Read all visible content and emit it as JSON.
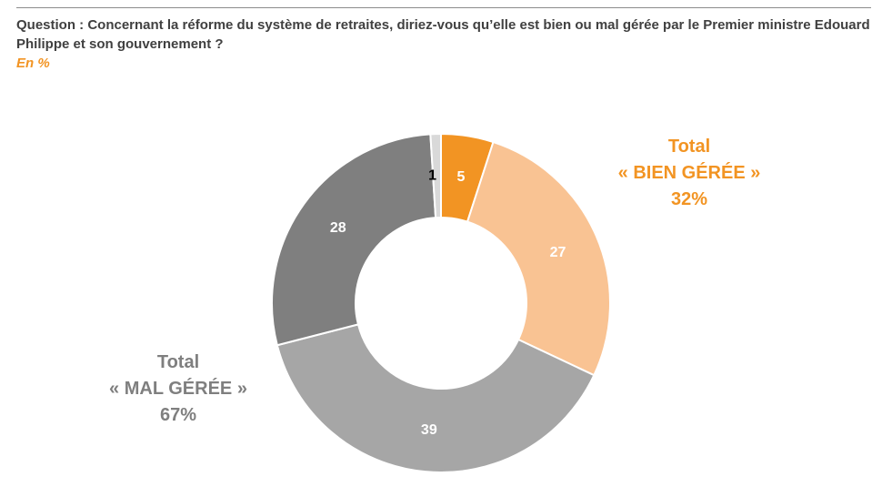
{
  "header": {
    "question": "Question : Concernant la réforme du système de retraites, diriez-vous qu’elle est bien ou mal gérée par le Premier ministre Edouard Philippe et son gouvernement ?",
    "unit": "En %"
  },
  "chart_data": {
    "type": "pie",
    "variant": "donut",
    "start": "top",
    "direction": "clockwise",
    "slices": [
      {
        "label": "",
        "value": 5,
        "color": "#f29423",
        "label_color": "#ffffff"
      },
      {
        "label": "",
        "value": 27,
        "color": "#f9c393",
        "label_color": "#ffffff"
      },
      {
        "label": "",
        "value": 39,
        "color": "#a6a6a6",
        "label_color": "#ffffff"
      },
      {
        "label": "",
        "value": 28,
        "color": "#7f7f7f",
        "label_color": "#ffffff"
      },
      {
        "label": "",
        "value": 1,
        "color": "#d9d9d9",
        "label_color": "#000000"
      }
    ],
    "data_labels": [
      "5",
      "27",
      "39",
      "28",
      "1"
    ]
  },
  "callouts": {
    "bien": {
      "line1": "Total",
      "line2": "« BIEN GÉRÉE »",
      "line3": "32%",
      "color": "#f29423"
    },
    "mal": {
      "line1": "Total",
      "line2": "« MAL GÉRÉE »",
      "line3": "67%",
      "color": "#7f7f7f"
    }
  }
}
